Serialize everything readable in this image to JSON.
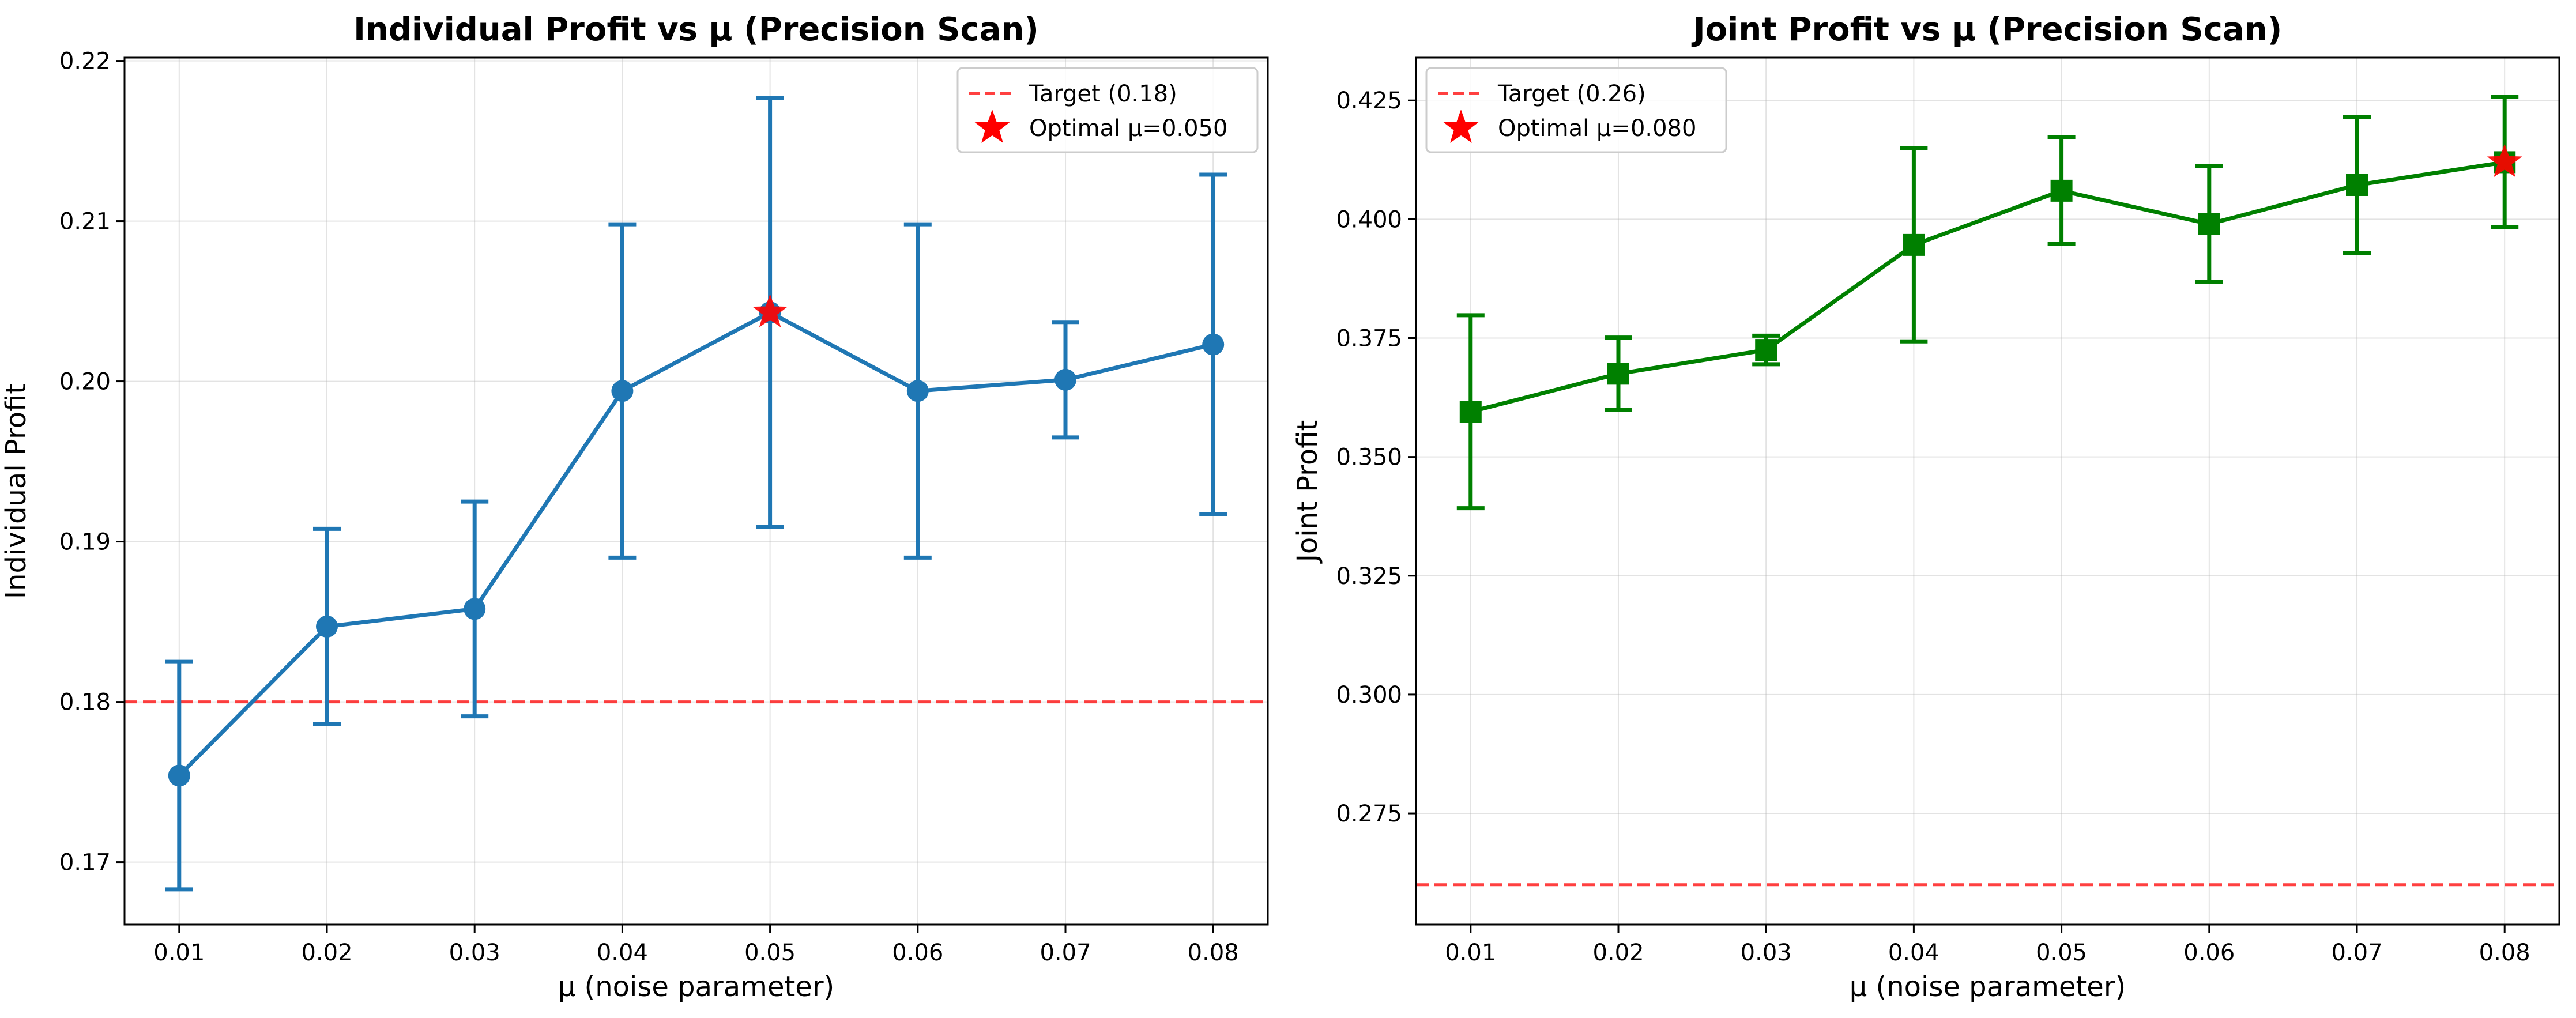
{
  "chart_data": [
    {
      "type": "line",
      "title": "Individual Profit vs μ (Precision Scan)",
      "xlabel": "μ (noise parameter)",
      "ylabel": "Individual Profit",
      "x": [
        0.01,
        0.02,
        0.03,
        0.04,
        0.05,
        0.06,
        0.07,
        0.08
      ],
      "x_ticks": [
        "0.01",
        "0.02",
        "0.03",
        "0.04",
        "0.05",
        "0.06",
        "0.07",
        "0.08"
      ],
      "xlim": [
        0.0063,
        0.0837
      ],
      "ylim": [
        0.1661,
        0.2202
      ],
      "y_ticks": [
        0.17,
        0.18,
        0.19,
        0.2,
        0.21,
        0.22
      ],
      "y_tick_labels": [
        "0.17",
        "0.18",
        "0.19",
        "0.20",
        "0.21",
        "0.22"
      ],
      "grid": true,
      "legend_position": "top-right",
      "series": [
        {
          "values": [
            0.1754,
            0.1847,
            0.1858,
            0.1994,
            0.2043,
            0.1994,
            0.2001,
            0.2023
          ],
          "error": [
            0.0071,
            0.0061,
            0.0067,
            0.0104,
            0.0134,
            0.0104,
            0.0036,
            0.0106
          ],
          "color": "#1f77b4",
          "marker": "circle"
        }
      ],
      "reference_line": {
        "label": "Target (0.18)",
        "y": 0.18,
        "color": "#ff0000"
      },
      "optimal_marker": {
        "label": "Optimal μ=0.050",
        "x": 0.05,
        "y": 0.2043,
        "color": "#ff0000"
      }
    },
    {
      "type": "line",
      "title": "Joint Profit vs μ (Precision Scan)",
      "xlabel": "μ (noise parameter)",
      "ylabel": "Joint Profit",
      "x": [
        0.01,
        0.02,
        0.03,
        0.04,
        0.05,
        0.06,
        0.07,
        0.08
      ],
      "x_ticks": [
        "0.01",
        "0.02",
        "0.03",
        "0.04",
        "0.05",
        "0.06",
        "0.07",
        "0.08"
      ],
      "xlim": [
        0.0063,
        0.0837
      ],
      "ylim": [
        0.2516,
        0.434
      ],
      "y_ticks": [
        0.275,
        0.3,
        0.325,
        0.35,
        0.375,
        0.4,
        0.425
      ],
      "y_tick_labels": [
        "0.275",
        "0.300",
        "0.325",
        "0.350",
        "0.375",
        "0.400",
        "0.425"
      ],
      "grid": true,
      "legend_position": "top-left",
      "series": [
        {
          "values": [
            0.3595,
            0.3675,
            0.3725,
            0.3946,
            0.406,
            0.399,
            0.4072,
            0.412
          ],
          "error": [
            0.0203,
            0.0076,
            0.003,
            0.0203,
            0.0112,
            0.0122,
            0.0143,
            0.0137
          ],
          "color": "#008000",
          "marker": "square"
        }
      ],
      "reference_line": {
        "label": "Target (0.26)",
        "y": 0.26,
        "color": "#ff0000"
      },
      "optimal_marker": {
        "label": "Optimal μ=0.080",
        "x": 0.08,
        "y": 0.412,
        "color": "#ff0000"
      }
    }
  ]
}
